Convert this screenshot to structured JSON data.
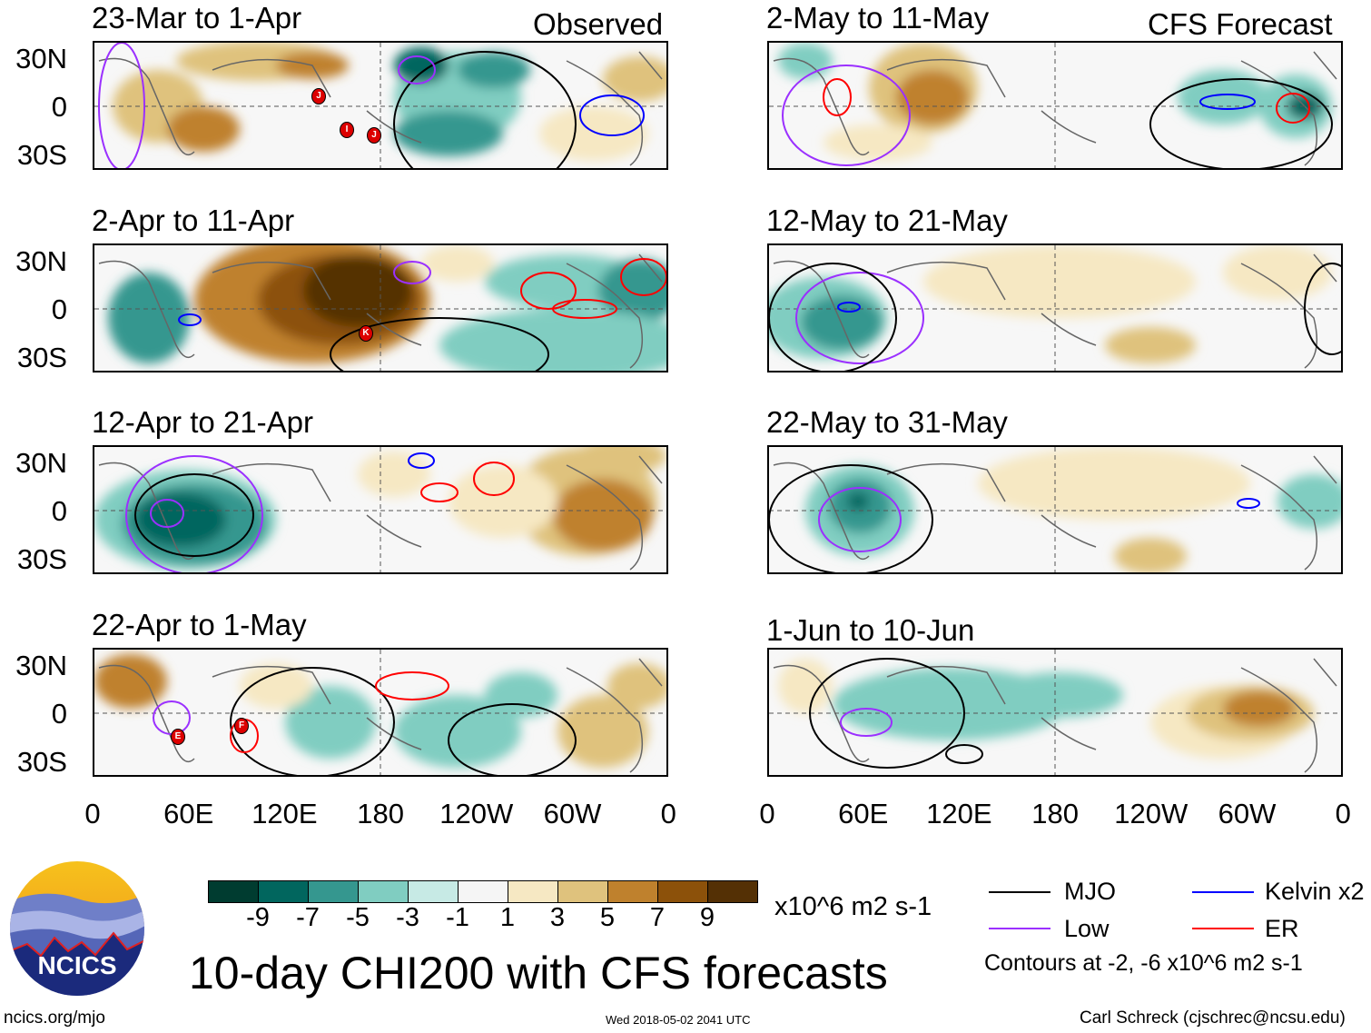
{
  "labels": {
    "observed": "Observed",
    "forecast": "CFS Forecast"
  },
  "panels_left": [
    "23-Mar to 1-Apr",
    "2-Apr to 11-Apr",
    "12-Apr to 21-Apr",
    "22-Apr to 1-May"
  ],
  "panels_right": [
    "2-May to 11-May",
    "12-May to 21-May",
    "22-May to 31-May",
    "1-Jun to 10-Jun"
  ],
  "lat_ticks": [
    "30N",
    "0",
    "30S"
  ],
  "lon_ticks": [
    "0",
    "60E",
    "120E",
    "180",
    "120W",
    "60W",
    "0"
  ],
  "colorbar": {
    "levels": [
      "-9",
      "-7",
      "-5",
      "-3",
      "-1",
      "1",
      "3",
      "5",
      "7",
      "9"
    ],
    "colors": [
      "#003c30",
      "#01665e",
      "#35978f",
      "#80cdc1",
      "#c7eae5",
      "#f5f5f5",
      "#f6e8c3",
      "#dfc27d",
      "#bf812d",
      "#8c510a",
      "#543005"
    ],
    "units": "x10^6 m2 s-1"
  },
  "legend": {
    "items": [
      {
        "label": "MJO",
        "color": "#000000"
      },
      {
        "label": "Low",
        "color": "#9b30ff"
      },
      {
        "label": "Kelvin x2",
        "color": "#0000ff"
      },
      {
        "label": "ER",
        "color": "#ff0000"
      }
    ],
    "contours_note": "Contours at -2, -6 x10^6 m2 s-1"
  },
  "storms": [
    {
      "panel": 0,
      "label": "J"
    },
    {
      "panel": 0,
      "label": "I"
    },
    {
      "panel": 0,
      "label": "J"
    },
    {
      "panel": 1,
      "label": "K"
    },
    {
      "panel": 3,
      "label": "E"
    },
    {
      "panel": 3,
      "label": "F"
    }
  ],
  "title": "10-day CHI200 with CFS forecasts",
  "logo_text": "NCICS",
  "footer": {
    "url": "ncics.org/mjo",
    "timestamp": "Wed 2018-05-02 2041 UTC",
    "author": "Carl Schreck (cjschrec@ncsu.edu)"
  }
}
